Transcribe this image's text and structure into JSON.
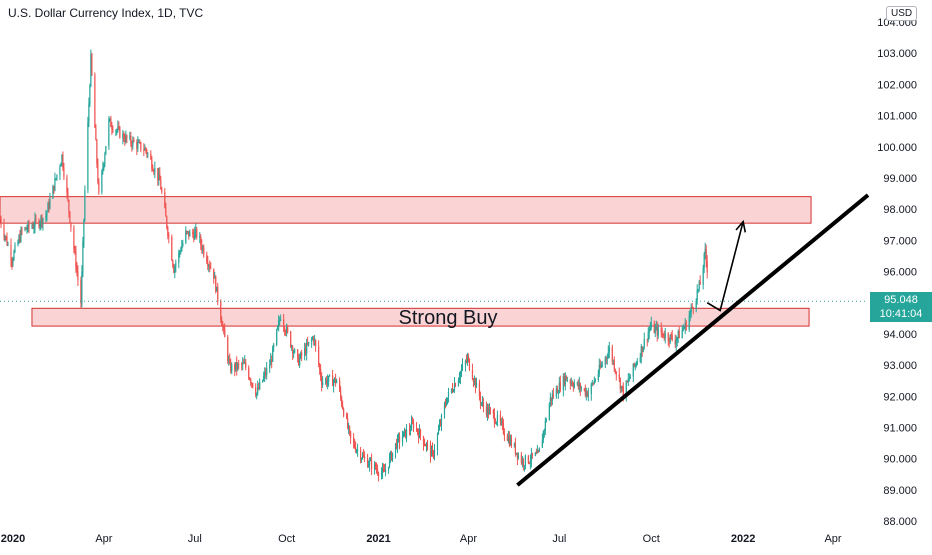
{
  "title": "U.S. Dollar Currency Index, 1D, TVC",
  "currency": "USD",
  "last_price": "95.048",
  "countdown": "10:41:04",
  "colors": {
    "up": "#26a69a",
    "down": "#ef5350",
    "zone_fill": "#f9c9c9",
    "zone_stroke": "#d32f2f",
    "trendline": "#000000",
    "price_line": "#26a69a"
  },
  "chart_data": {
    "type": "candlestick",
    "yaxis": {
      "min": 88,
      "max": 104,
      "ticks": [
        "88.000",
        "89.000",
        "90.000",
        "91.000",
        "92.000",
        "93.000",
        "94.000",
        "95.000",
        "96.000",
        "97.000",
        "98.000",
        "99.000",
        "100.000",
        "101.000",
        "102.000",
        "103.000",
        "104.000"
      ]
    },
    "xaxis": {
      "start": "2019-12-19",
      "end": "2022-05-06",
      "ticks": [
        {
          "label": "2020",
          "date": "2020-01-01",
          "bold": true
        },
        {
          "label": "Apr",
          "date": "2020-04-01",
          "bold": false
        },
        {
          "label": "Jul",
          "date": "2020-07-01",
          "bold": false
        },
        {
          "label": "Oct",
          "date": "2020-10-01",
          "bold": false
        },
        {
          "label": "2021",
          "date": "2021-01-01",
          "bold": true
        },
        {
          "label": "Apr",
          "date": "2021-04-01",
          "bold": false
        },
        {
          "label": "Jul",
          "date": "2021-07-01",
          "bold": false
        },
        {
          "label": "Oct",
          "date": "2021-10-01",
          "bold": false
        },
        {
          "label": "2022",
          "date": "2022-01-01",
          "bold": true
        },
        {
          "label": "Apr",
          "date": "2022-04-01",
          "bold": false
        }
      ]
    },
    "close_path": [
      [
        "2019-12-19",
        97.7
      ],
      [
        "2019-12-31",
        96.4
      ],
      [
        "2020-01-10",
        97.3
      ],
      [
        "2020-01-22",
        97.5
      ],
      [
        "2020-02-03",
        97.8
      ],
      [
        "2020-02-19",
        99.7
      ],
      [
        "2020-03-09",
        95.0
      ],
      [
        "2020-03-13",
        98.6
      ],
      [
        "2020-03-19",
        102.8
      ],
      [
        "2020-03-27",
        98.4
      ],
      [
        "2020-04-06",
        100.8
      ],
      [
        "2020-04-21",
        100.3
      ],
      [
        "2020-05-13",
        99.9
      ],
      [
        "2020-05-27",
        98.9
      ],
      [
        "2020-06-10",
        96.1
      ],
      [
        "2020-06-22",
        97.2
      ],
      [
        "2020-07-03",
        97.2
      ],
      [
        "2020-07-20",
        95.9
      ],
      [
        "2020-08-05",
        92.9
      ],
      [
        "2020-08-20",
        93.0
      ],
      [
        "2020-09-01",
        92.1
      ],
      [
        "2020-09-15",
        93.1
      ],
      [
        "2020-09-25",
        94.6
      ],
      [
        "2020-10-12",
        93.1
      ],
      [
        "2020-10-28",
        93.9
      ],
      [
        "2020-11-05",
        92.5
      ],
      [
        "2020-11-20",
        92.5
      ],
      [
        "2020-12-04",
        90.6
      ],
      [
        "2020-12-17",
        90.0
      ],
      [
        "2021-01-06",
        89.5
      ],
      [
        "2021-01-19",
        90.5
      ],
      [
        "2021-02-05",
        91.1
      ],
      [
        "2021-02-24",
        90.1
      ],
      [
        "2021-03-10",
        91.9
      ],
      [
        "2021-03-31",
        93.2
      ],
      [
        "2021-04-15",
        91.7
      ],
      [
        "2021-05-01",
        91.2
      ],
      [
        "2021-05-25",
        89.9
      ],
      [
        "2021-06-10",
        90.1
      ],
      [
        "2021-06-22",
        91.9
      ],
      [
        "2021-07-07",
        92.6
      ],
      [
        "2021-07-30",
        92.1
      ],
      [
        "2021-08-20",
        93.5
      ],
      [
        "2021-09-03",
        92.1
      ],
      [
        "2021-09-30",
        94.2
      ],
      [
        "2021-10-25",
        93.8
      ],
      [
        "2021-11-05",
        94.3
      ],
      [
        "2021-11-19",
        95.6
      ],
      [
        "2021-11-24",
        96.6
      ],
      [
        "2021-11-26",
        96.1
      ]
    ],
    "zones": [
      {
        "name": "upper-resistance-zone",
        "start": "2019-12-19",
        "end": "2022-03-10",
        "low": 97.55,
        "high": 98.4
      },
      {
        "name": "strong-buy-zone",
        "start": "2020-01-20",
        "end": "2022-03-08",
        "low": 94.25,
        "high": 94.82,
        "label": "Strong Buy"
      }
    ],
    "trendline": {
      "start": [
        "2021-05-20",
        89.15
      ],
      "end": [
        "2022-05-06",
        98.45
      ]
    },
    "projection_arrow": [
      [
        "2021-11-26",
        95.0
      ],
      [
        "2021-12-09",
        94.75
      ],
      [
        "2022-01-01",
        97.6
      ]
    ],
    "current_price_line": 95.048
  }
}
